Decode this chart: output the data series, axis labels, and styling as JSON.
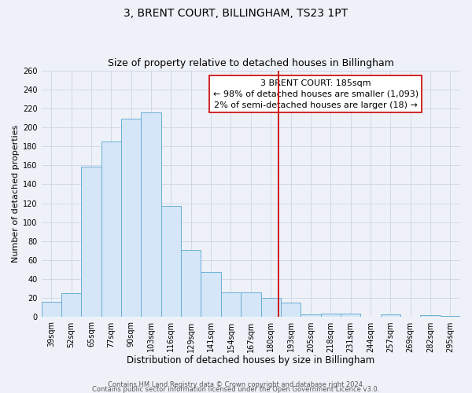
{
  "title": "3, BRENT COURT, BILLINGHAM, TS23 1PT",
  "subtitle": "Size of property relative to detached houses in Billingham",
  "xlabel": "Distribution of detached houses by size in Billingham",
  "ylabel": "Number of detached properties",
  "bar_labels": [
    "39sqm",
    "52sqm",
    "65sqm",
    "77sqm",
    "90sqm",
    "103sqm",
    "116sqm",
    "129sqm",
    "141sqm",
    "154sqm",
    "167sqm",
    "180sqm",
    "193sqm",
    "205sqm",
    "218sqm",
    "231sqm",
    "244sqm",
    "257sqm",
    "269sqm",
    "282sqm",
    "295sqm"
  ],
  "bar_values": [
    16,
    25,
    159,
    185,
    209,
    216,
    117,
    71,
    48,
    26,
    26,
    20,
    15,
    3,
    4,
    4,
    0,
    3,
    0,
    2,
    1
  ],
  "bar_color": "#d4e6f7",
  "bar_edge_color": "#6aaed6",
  "vline_color": "#cc0000",
  "annotation_title": "3 BRENT COURT: 185sqm",
  "annotation_line1": "← 98% of detached houses are smaller (1,093)",
  "annotation_line2": "2% of semi-detached houses are larger (18) →",
  "annotation_box_color": "#ffffff",
  "annotation_border_color": "#cc0000",
  "ylim": [
    0,
    260
  ],
  "yticks": [
    0,
    20,
    40,
    60,
    80,
    100,
    120,
    140,
    160,
    180,
    200,
    220,
    240,
    260
  ],
  "footer1": "Contains HM Land Registry data © Crown copyright and database right 2024.",
  "footer2": "Contains public sector information licensed under the Open Government Licence v3.0.",
  "bg_color": "#eef2f8",
  "title_fontsize": 10,
  "subtitle_fontsize": 9,
  "xlabel_fontsize": 8.5,
  "ylabel_fontsize": 8,
  "tick_fontsize": 7,
  "footer_fontsize": 6,
  "ann_fontsize": 8
}
